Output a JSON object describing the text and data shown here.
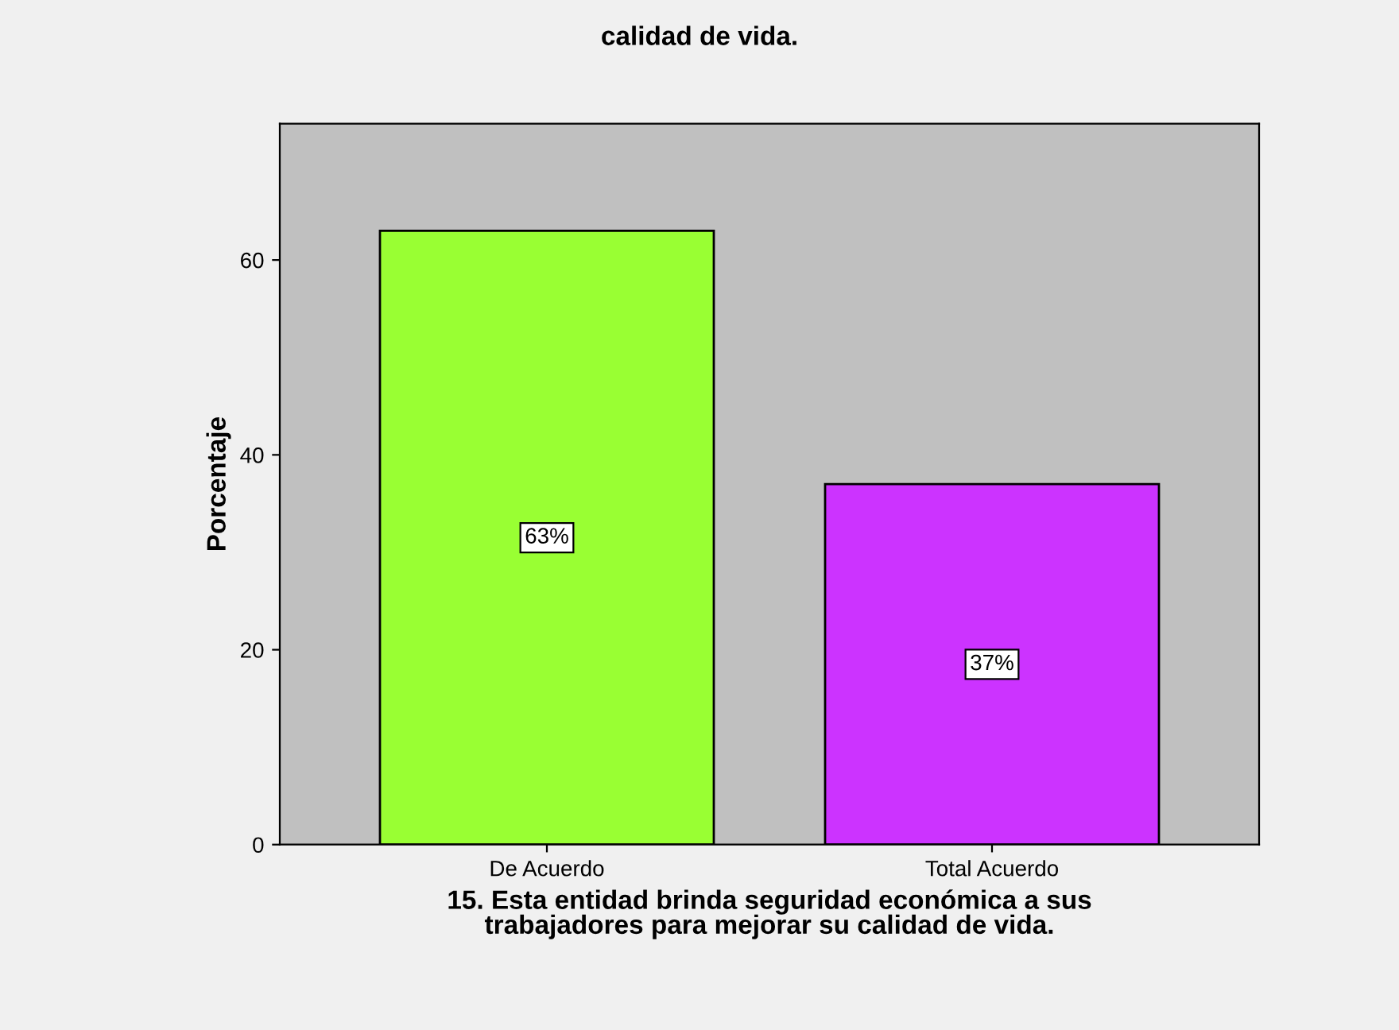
{
  "chart_data": {
    "type": "bar",
    "title": "calidad de vida.",
    "xlabel": "15. Esta entidad brinda seguridad económica a sus\ntrabajadores para mejorar su calidad de vida.",
    "ylabel": "Porcentaje",
    "categories": [
      "De Acuerdo",
      "Total Acuerdo"
    ],
    "values": [
      63,
      37
    ],
    "colors": [
      "#99ff33",
      "#cc33ff"
    ],
    "value_labels": [
      "63%",
      "37%"
    ],
    "ylim": [
      0,
      74
    ],
    "yticks": [
      0,
      20,
      40,
      60
    ],
    "grid": false
  }
}
